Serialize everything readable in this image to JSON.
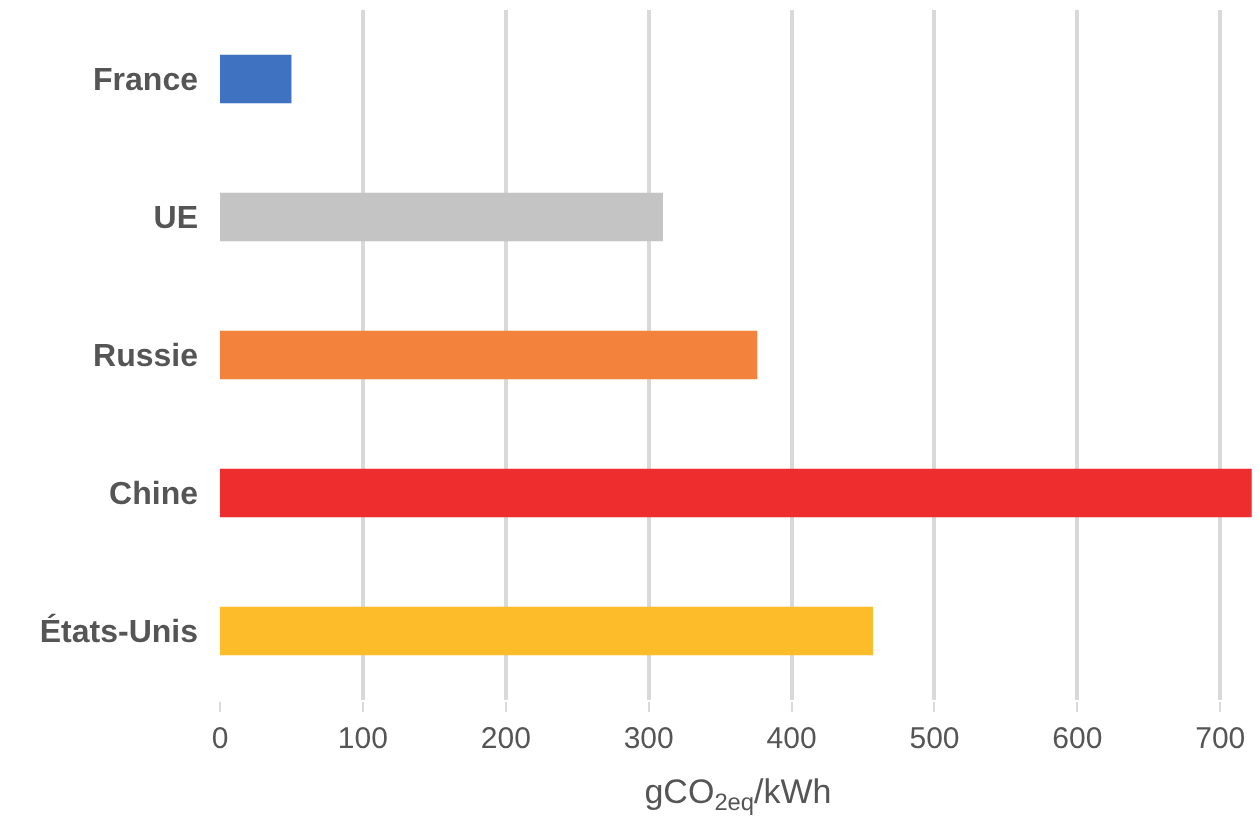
{
  "chart_data": {
    "type": "bar",
    "orientation": "horizontal",
    "xlabel": "gCO$_{2eq}$/kWh",
    "categories": [
      "France",
      "UE",
      "Russie",
      "Chine",
      "États-Unis"
    ],
    "values": [
      50,
      310,
      376,
      722,
      457
    ],
    "colors": [
      "#3f72c0",
      "#c4c4c4",
      "#f2823c",
      "#ee2e2e",
      "#fdbd2a"
    ],
    "xlim": [
      0,
      725
    ],
    "xticks": [
      0,
      100,
      200,
      300,
      400,
      500,
      600,
      700
    ],
    "grid": "x"
  }
}
